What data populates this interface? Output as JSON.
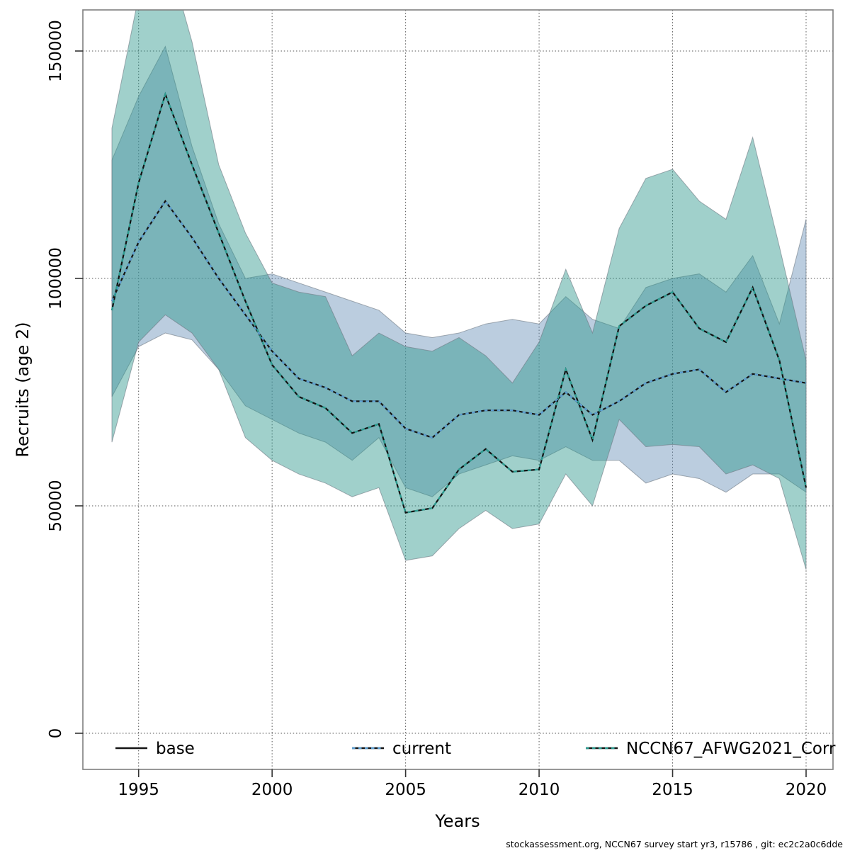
{
  "figure": {
    "footer": "stockassessment.org, NCCN67 survey start yr3, r15786 , git: ec2c2a0c6dde"
  },
  "legend": [
    {
      "label": "base",
      "color": "#111111",
      "style": "solid"
    },
    {
      "label": "current",
      "color": "#5d9fd3",
      "style": "dashed"
    },
    {
      "label": "NCCN67_AFWG2021_Corr",
      "color": "#2c9e92",
      "style": "dashed"
    }
  ],
  "colors": {
    "current_band": "rgba(105,145,185,0.45)",
    "nccn_band": "rgba(45,150,140,0.45)",
    "band_edge": "rgba(110,120,130,0.6)",
    "base_line": "#111111",
    "current_line": "#5d9fd3",
    "nccn_line": "#2c9e92"
  },
  "chart_data": {
    "type": "line",
    "title": "",
    "xlabel": "Years",
    "ylabel": "Recruits (age 2)",
    "grid": true,
    "legend_position": "bottom",
    "x": [
      1994,
      1995,
      1996,
      1997,
      1998,
      1999,
      2000,
      2001,
      2002,
      2003,
      2004,
      2005,
      2006,
      2007,
      2008,
      2009,
      2010,
      2011,
      2012,
      2013,
      2014,
      2015,
      2016,
      2017,
      2018,
      2019,
      2020
    ],
    "x_ticks": [
      1995,
      2000,
      2005,
      2010,
      2015,
      2020
    ],
    "y_ticks": [
      0,
      50000,
      100000,
      150000
    ],
    "xlim": [
      1993.5,
      2021
    ],
    "ylim": [
      0,
      160000
    ],
    "series": [
      {
        "name": "base",
        "values": [
          93000,
          121000,
          140500,
          125000,
          110000,
          95000,
          81000,
          74000,
          71500,
          66000,
          68000,
          48500,
          49500,
          58000,
          62500,
          57500,
          58000,
          80000,
          64500,
          89500,
          94000,
          97000,
          89000,
          86000,
          98000,
          82000,
          54000
        ]
      },
      {
        "name": "current",
        "values": [
          95000,
          108000,
          117000,
          109000,
          100000,
          92000,
          84000,
          78000,
          76000,
          73000,
          73000,
          67000,
          65000,
          70000,
          71000,
          71000,
          70000,
          75000,
          70000,
          73000,
          77000,
          79000,
          80000,
          75000,
          79000,
          78000,
          77000
        ],
        "band_lo": [
          74000,
          85000,
          88000,
          86500,
          80000,
          72000,
          69000,
          66000,
          64000,
          60000,
          65000,
          54000,
          52000,
          57000,
          59000,
          61000,
          60000,
          63000,
          60000,
          60000,
          55000,
          57000,
          56000,
          53000,
          57000,
          57000,
          53000
        ],
        "band_hi": [
          126000,
          140000,
          151000,
          129000,
          112000,
          100000,
          101000,
          99000,
          97000,
          95000,
          93000,
          88000,
          87000,
          88000,
          90000,
          91000,
          90000,
          96000,
          91000,
          89000,
          98000,
          100000,
          101000,
          97000,
          105000,
          90000,
          113000
        ]
      },
      {
        "name": "NCCN67_AFWG2021_Corr",
        "values": [
          93000,
          121000,
          140500,
          125000,
          110000,
          95000,
          81000,
          74000,
          71500,
          66000,
          68000,
          48500,
          49500,
          58000,
          62500,
          57500,
          58000,
          80000,
          64500,
          89500,
          94000,
          97000,
          89000,
          86000,
          98000,
          82000,
          54000
        ],
        "band_lo": [
          64000,
          86000,
          92000,
          88000,
          80000,
          65000,
          60000,
          57000,
          55000,
          52000,
          54000,
          38000,
          39000,
          45000,
          49000,
          45000,
          46000,
          57000,
          50000,
          69000,
          63000,
          63500,
          63000,
          57000,
          59000,
          56000,
          36000
        ],
        "band_hi": [
          133000,
          162000,
          173000,
          152000,
          125000,
          110000,
          99000,
          97000,
          96000,
          83000,
          88000,
          85000,
          84000,
          87000,
          83000,
          77000,
          86000,
          102000,
          88000,
          111000,
          122000,
          124000,
          117000,
          113000,
          131000,
          107000,
          82000
        ]
      }
    ]
  }
}
